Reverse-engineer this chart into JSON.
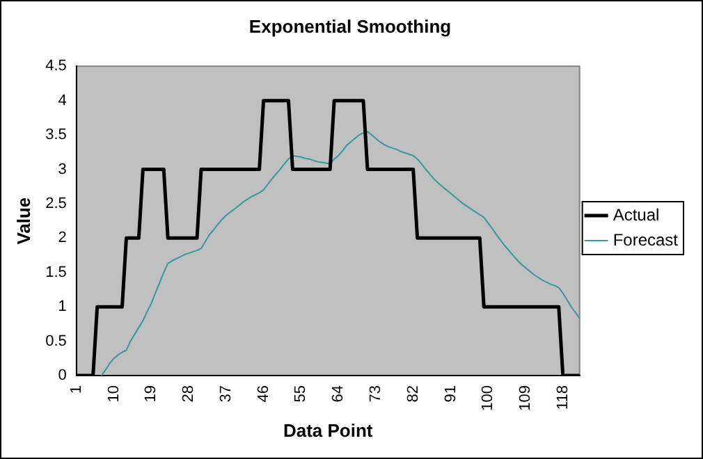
{
  "chart_data": {
    "type": "line",
    "title": "Exponential Smoothing",
    "xlabel": "Data Point",
    "ylabel": "Value",
    "categories": [
      "1",
      null,
      null,
      null,
      null,
      null,
      null,
      null,
      null,
      "10",
      null,
      null,
      null,
      null,
      null,
      null,
      null,
      null,
      "19",
      null,
      null,
      null,
      null,
      null,
      null,
      null,
      null,
      "28",
      null,
      null,
      null,
      null,
      null,
      null,
      null,
      null,
      "37",
      null,
      null,
      null,
      null,
      null,
      null,
      null,
      null,
      "46",
      null,
      null,
      null,
      null,
      null,
      null,
      null,
      null,
      "55",
      null,
      null,
      null,
      null,
      null,
      null,
      null,
      null,
      "64",
      null,
      null,
      null,
      null,
      null,
      null,
      null,
      null,
      "73",
      null,
      null,
      null,
      null,
      null,
      null,
      null,
      null,
      "82",
      null,
      null,
      null,
      null,
      null,
      null,
      null,
      null,
      "91",
      null,
      null,
      null,
      null,
      null,
      null,
      null,
      null,
      "100",
      null,
      null,
      null,
      null,
      null,
      null,
      null,
      null,
      "109",
      null,
      null,
      null,
      null,
      null,
      null,
      null,
      null,
      "118",
      null,
      null,
      null,
      null
    ],
    "series": [
      {
        "name": "Actual",
        "color": "#000000",
        "values": [
          0,
          0,
          0,
          0,
          0,
          1,
          1,
          1,
          1,
          1,
          1,
          1,
          2,
          2,
          2,
          2,
          3,
          3,
          3,
          3,
          3,
          3,
          2,
          2,
          2,
          2,
          2,
          2,
          2,
          2,
          3,
          3,
          3,
          3,
          3,
          3,
          3,
          3,
          3,
          3,
          3,
          3,
          3,
          3,
          3,
          4,
          4,
          4,
          4,
          4,
          4,
          4,
          3,
          3,
          3,
          3,
          3,
          3,
          3,
          3,
          3,
          3,
          4,
          4,
          4,
          4,
          4,
          4,
          4,
          4,
          3,
          3,
          3,
          3,
          3,
          3,
          3,
          3,
          3,
          3,
          3,
          3,
          2,
          2,
          2,
          2,
          2,
          2,
          2,
          2,
          2,
          2,
          2,
          2,
          2,
          2,
          2,
          2,
          1,
          1,
          1,
          1,
          1,
          1,
          1,
          1,
          1,
          1,
          1,
          1,
          1,
          1,
          1,
          1,
          1,
          1,
          1,
          0,
          0,
          0,
          0,
          0
        ]
      },
      {
        "name": "Forecast",
        "color": "#339999",
        "values": [
          null,
          null,
          null,
          null,
          null,
          null,
          0,
          0.08,
          0.18,
          0.25,
          0.3,
          0.34,
          0.37,
          0.5,
          0.6,
          0.7,
          0.8,
          0.93,
          1.05,
          1.2,
          1.35,
          1.5,
          1.63,
          1.67,
          1.7,
          1.73,
          1.76,
          1.78,
          1.8,
          1.82,
          1.85,
          1.95,
          2.05,
          2.12,
          2.2,
          2.27,
          2.33,
          2.38,
          2.42,
          2.47,
          2.52,
          2.56,
          2.6,
          2.63,
          2.66,
          2.7,
          2.78,
          2.86,
          2.93,
          3.0,
          3.08,
          3.15,
          3.2,
          3.19,
          3.18,
          3.16,
          3.15,
          3.13,
          3.11,
          3.1,
          3.09,
          3.08,
          3.15,
          3.2,
          3.27,
          3.35,
          3.4,
          3.45,
          3.5,
          3.53,
          3.55,
          3.5,
          3.45,
          3.4,
          3.36,
          3.33,
          3.31,
          3.29,
          3.26,
          3.24,
          3.22,
          3.2,
          3.15,
          3.08,
          3.0,
          2.93,
          2.86,
          2.8,
          2.75,
          2.7,
          2.65,
          2.6,
          2.55,
          2.5,
          2.46,
          2.42,
          2.38,
          2.34,
          2.3,
          2.22,
          2.14,
          2.05,
          1.97,
          1.89,
          1.82,
          1.75,
          1.68,
          1.62,
          1.57,
          1.52,
          1.47,
          1.43,
          1.39,
          1.36,
          1.33,
          1.31,
          1.28,
          1.2,
          1.1,
          1.0,
          0.92,
          0.83
        ]
      }
    ],
    "ylim": [
      0,
      4.5
    ],
    "yticks": [
      0,
      0.5,
      1,
      1.5,
      2,
      2.5,
      3,
      3.5,
      4,
      4.5
    ],
    "grid": false,
    "legend": "right",
    "marker": "none",
    "line_style": "solid"
  }
}
